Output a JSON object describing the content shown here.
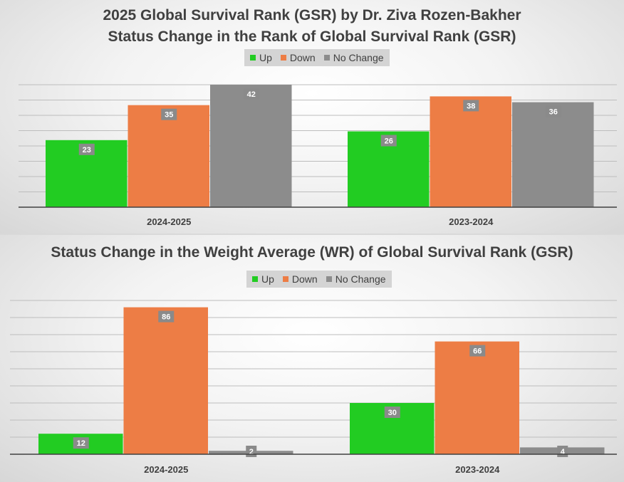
{
  "chart_data": [
    {
      "type": "bar",
      "title": "2025 Global Survival Rank (GSR) by Dr. Ziva Rozen-Bakher",
      "subtitle": "Status Change in the Rank of Global Survival Rank (GSR)",
      "categories": [
        "2024-2025",
        "2023-2024"
      ],
      "series": [
        {
          "name": "Up",
          "color": "#22cc22",
          "values": [
            23,
            26
          ]
        },
        {
          "name": "Down",
          "color": "#ed7d45",
          "values": [
            35,
            38
          ]
        },
        {
          "name": "No Change",
          "color": "#8c8c8c",
          "values": [
            42,
            36
          ]
        }
      ],
      "ylim": [
        0,
        42
      ],
      "grid": true,
      "legend": "top-center"
    },
    {
      "type": "bar",
      "title": "Status Change in the Weight Average (WR) of Global Survival Rank (GSR)",
      "categories": [
        "2024-2025",
        "2023-2024"
      ],
      "series": [
        {
          "name": "Up",
          "color": "#22cc22",
          "values": [
            12,
            30
          ]
        },
        {
          "name": "Down",
          "color": "#ed7d45",
          "values": [
            86,
            66
          ]
        },
        {
          "name": "No Change",
          "color": "#8c8c8c",
          "values": [
            2,
            4
          ]
        }
      ],
      "ylim": [
        0,
        90
      ],
      "grid": true,
      "legend": "top-center"
    }
  ]
}
